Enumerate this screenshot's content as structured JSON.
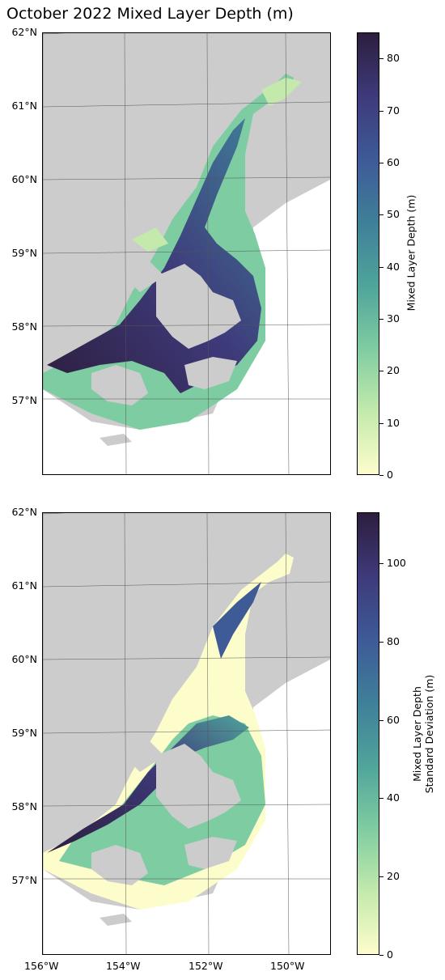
{
  "title": "October 2022 Mixed Layer Depth (m)",
  "latitude_labels": [
    "62°N",
    "61°N",
    "60°N",
    "59°N",
    "58°N",
    "57°N"
  ],
  "longitude_labels": [
    "156°W",
    "154°W",
    "152°W",
    "150°W"
  ],
  "colors": {
    "land": "#cccccc",
    "ocean_background": "#ffffff",
    "colormap": [
      "#fdfdcc",
      "#c3e9ad",
      "#7ecca1",
      "#4fa49b",
      "#3f7f99",
      "#3e5a97",
      "#3e3a7a",
      "#2d1e3e"
    ]
  },
  "panels": [
    {
      "colorbar_label": "Mixed Layer Depth (m)",
      "colorbar_ticks": [
        "0",
        "10",
        "20",
        "30",
        "40",
        "50",
        "60",
        "70",
        "80"
      ],
      "colorbar_max": 85
    },
    {
      "colorbar_label_line1": "Mixed Layer Depth",
      "colorbar_label_line2": "Standard Deviation (m)",
      "colorbar_ticks": [
        "0",
        "20",
        "40",
        "60",
        "80",
        "100"
      ],
      "colorbar_max": 113
    }
  ]
}
